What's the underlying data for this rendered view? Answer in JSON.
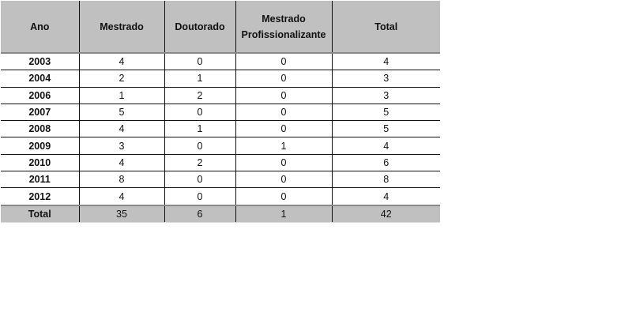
{
  "table": {
    "headers": [
      "Ano",
      "Mestrado",
      "Doutorado",
      "Mestrado Profissionalizante",
      "Total"
    ],
    "rows": [
      [
        "2003",
        "4",
        "0",
        "0",
        "4"
      ],
      [
        "2004",
        "2",
        "1",
        "0",
        "3"
      ],
      [
        "2006",
        "1",
        "2",
        "0",
        "3"
      ],
      [
        "2007",
        "5",
        "0",
        "0",
        "5"
      ],
      [
        "2008",
        "4",
        "1",
        "0",
        "5"
      ],
      [
        "2009",
        "3",
        "0",
        "1",
        "4"
      ],
      [
        "2010",
        "4",
        "2",
        "0",
        "6"
      ],
      [
        "2011",
        "8",
        "0",
        "0",
        "8"
      ],
      [
        "2012",
        "4",
        "0",
        "0",
        "4"
      ]
    ],
    "total": [
      "Total",
      "35",
      "6",
      "1",
      "42"
    ]
  },
  "colors": {
    "header_bg": "#c0c0c0",
    "total_bg": "#c0c0c0"
  }
}
